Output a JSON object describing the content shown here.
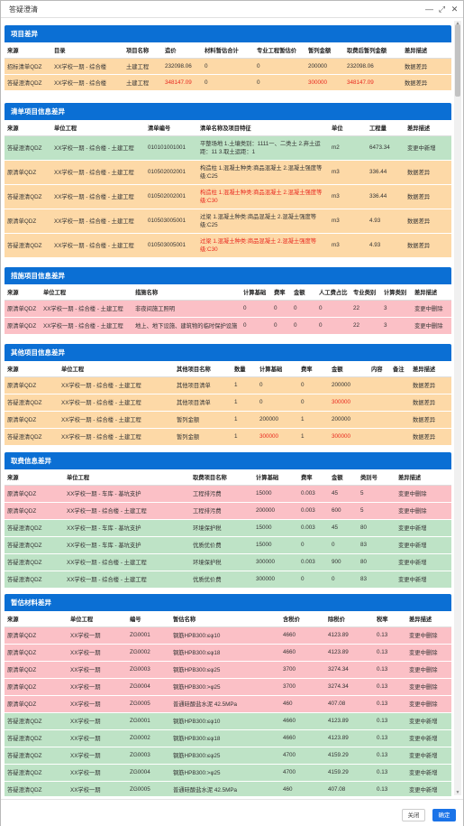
{
  "window": {
    "title": "答疑澄清"
  },
  "footer": {
    "close_label": "关闭",
    "ok_label": "确定"
  },
  "colors": {
    "header_blue": "#0b6fd4",
    "orange_row": "#fdd9a7",
    "green_row": "#bee3c6",
    "red_row": "#fbc0c6",
    "highlight_text": "#e8281f"
  },
  "sections": [
    {
      "id": "project-diff",
      "title": "项目差异",
      "columns": [
        "来源",
        "目录",
        "项目名称",
        "造价",
        "材料暂估合计",
        "专业工程暂估价",
        "暂列金额",
        "取费后暂列金额",
        "差异描述"
      ],
      "widths": [
        52,
        80,
        43,
        44,
        58,
        57,
        43,
        64,
        55
      ],
      "row_height": 18,
      "rows": [
        {
          "status": "orange",
          "cells": [
            "招标清单QDZ",
            "XX学校一期 - 综合楼",
            "土建工程",
            "232098.06",
            "0",
            "0",
            "200000",
            "232098.06",
            "数据差异"
          ],
          "hl": []
        },
        {
          "status": "orange",
          "cells": [
            "答疑澄清QDZ",
            "XX学校一期 - 综合楼",
            "土建工程",
            "348147.09",
            "0",
            "0",
            "300000",
            "348147.09",
            "数据差异"
          ],
          "hl": [
            3,
            6,
            7
          ]
        }
      ]
    },
    {
      "id": "bill-item-diff",
      "title": "清单项目信息差异",
      "columns": [
        "来源",
        "单位工程",
        "清单编号",
        "清单名称及项目特征",
        "单位",
        "工程量",
        "差异描述"
      ],
      "widths": [
        52,
        104,
        58,
        146,
        42,
        42,
        52
      ],
      "row_height": 27,
      "rows": [
        {
          "status": "green",
          "cells": [
            "答疑澄清QDZ",
            "XX学校一期 - 综合楼 - 土建工程",
            "010101001001",
            "平整场地 1.土壤类别：1111一、二类土 2.弃土运距：11 3.取土运距：1",
            "m2",
            "6473.34",
            "变更中新增"
          ],
          "hl": []
        },
        {
          "status": "orange",
          "cells": [
            "原清单QDZ",
            "XX学校一期 - 综合楼 - 土建工程",
            "010502002001",
            "构造柱 1.混凝土种类:商品混凝土 2.混凝土强度等级:C25",
            "m3",
            "336.44",
            "数据差异"
          ],
          "hl": []
        },
        {
          "status": "orange",
          "cells": [
            "答疑澄清QDZ",
            "XX学校一期 - 综合楼 - 土建工程",
            "010502002001",
            "构造柱 1.混凝土种类:商品混凝土 2.混凝土强度等级:C30",
            "m3",
            "336.44",
            "数据差异"
          ],
          "hl": [
            3
          ]
        },
        {
          "status": "orange",
          "cells": [
            "原清单QDZ",
            "XX学校一期 - 综合楼 - 土建工程",
            "010503005001",
            "过梁 1.混凝土种类:商品混凝土 2.混凝土强度等级:C25",
            "m3",
            "4.93",
            "数据差异"
          ],
          "hl": []
        },
        {
          "status": "orange",
          "cells": [
            "答疑澄清QDZ",
            "XX学校一期 - 综合楼 - 土建工程",
            "010503005001",
            "过梁 1.混凝土种类:商品混凝土 2.混凝土强度等级:C30",
            "m3",
            "4.93",
            "数据差异"
          ],
          "hl": [
            3
          ]
        }
      ]
    },
    {
      "id": "measure-diff",
      "title": "措施项目信息差异",
      "columns": [
        "来源",
        "单位工程",
        "措施名称",
        "计算基础",
        "费率",
        "金额",
        "人工费占比",
        "专业类别",
        "计算类别",
        "差异描述"
      ],
      "widths": [
        40,
        102,
        120,
        34,
        22,
        28,
        38,
        34,
        34,
        44
      ],
      "row_height": 19,
      "rows": [
        {
          "status": "red",
          "cells": [
            "原清单QDZ",
            "XX学校一期 - 综合楼 - 土建工程",
            "非夜间施工照明",
            "0",
            "0",
            "0",
            "0",
            "22",
            "3",
            "变更中删除"
          ],
          "hl": []
        },
        {
          "status": "red",
          "cells": [
            "原清单QDZ",
            "XX学校一期 - 综合楼 - 土建工程",
            "地上、地下设施、建筑物的临时保护设施",
            "0",
            "0",
            "0",
            "0",
            "22",
            "3",
            "变更中删除"
          ],
          "hl": []
        }
      ]
    },
    {
      "id": "other-item-diff",
      "title": "其他项目信息差异",
      "columns": [
        "来源",
        "单位工程",
        "其他项目名称",
        "数量",
        "计算基础",
        "费率",
        "金额",
        "内容",
        "备注",
        "差异描述"
      ],
      "widths": [
        60,
        128,
        64,
        28,
        46,
        34,
        44,
        24,
        22,
        46
      ],
      "row_height": 19,
      "rows": [
        {
          "status": "orange",
          "cells": [
            "原清单QDZ",
            "XX学校一期 - 综合楼 - 土建工程",
            "其他项目清单",
            "1",
            "0",
            "0",
            "200000",
            "",
            "",
            "数据差异"
          ],
          "hl": []
        },
        {
          "status": "orange",
          "cells": [
            "答疑澄清QDZ",
            "XX学校一期 - 综合楼 - 土建工程",
            "其他项目清单",
            "1",
            "0",
            "0",
            "300000",
            "",
            "",
            "数据差异"
          ],
          "hl": [
            6
          ]
        },
        {
          "status": "orange",
          "cells": [
            "原清单QDZ",
            "XX学校一期 - 综合楼 - 土建工程",
            "暂列金额",
            "1",
            "200000",
            "1",
            "200000",
            "",
            "",
            "数据差异"
          ],
          "hl": []
        },
        {
          "status": "orange",
          "cells": [
            "答疑澄清QDZ",
            "XX学校一期 - 综合楼 - 土建工程",
            "暂列金额",
            "1",
            "300000",
            "1",
            "300000",
            "",
            "",
            "数据差异"
          ],
          "hl": [
            4,
            6
          ]
        }
      ]
    },
    {
      "id": "fee-diff",
      "title": "取费信息差异",
      "columns": [
        "来源",
        "单位工程",
        "取费项目名称",
        "计算基础",
        "费率",
        "金额",
        "类别号",
        "差异描述"
      ],
      "widths": [
        66,
        140,
        70,
        50,
        34,
        32,
        42,
        62
      ],
      "row_height": 19,
      "rows": [
        {
          "status": "red",
          "cells": [
            "原清单QDZ",
            "XX学校一期 - 车库 - 基坑支护",
            "工程排污费",
            "15000",
            "0.003",
            "45",
            "5",
            "变更中删除"
          ],
          "hl": []
        },
        {
          "status": "red",
          "cells": [
            "原清单QDZ",
            "XX学校一期 - 综合楼 - 土建工程",
            "工程排污费",
            "200000",
            "0.003",
            "600",
            "5",
            "变更中删除"
          ],
          "hl": []
        },
        {
          "status": "green",
          "cells": [
            "答疑澄清QDZ",
            "XX学校一期 - 车库 - 基坑支护",
            "环境保护税",
            "15000",
            "0.003",
            "45",
            "80",
            "变更中新增"
          ],
          "hl": []
        },
        {
          "status": "green",
          "cells": [
            "答疑澄清QDZ",
            "XX学校一期 - 车库 - 基坑支护",
            "优质优价费",
            "15000",
            "0",
            "0",
            "83",
            "变更中新增"
          ],
          "hl": []
        },
        {
          "status": "green",
          "cells": [
            "答疑澄清QDZ",
            "XX学校一期 - 综合楼 - 土建工程",
            "环境保护税",
            "300000",
            "0.003",
            "900",
            "80",
            "变更中新增"
          ],
          "hl": []
        },
        {
          "status": "green",
          "cells": [
            "答疑澄清QDZ",
            "XX学校一期 - 综合楼 - 土建工程",
            "优质优价费",
            "300000",
            "0",
            "0",
            "83",
            "变更中新增"
          ],
          "hl": []
        }
      ]
    },
    {
      "id": "material-diff",
      "title": "暂估材料差异",
      "columns": [
        "来源",
        "单位工程",
        "编号",
        "暂估名称",
        "含税价",
        "除税价",
        "税率",
        "差异描述"
      ],
      "widths": [
        70,
        66,
        48,
        122,
        50,
        54,
        36,
        50
      ],
      "row_height": 19,
      "rows": [
        {
          "status": "red",
          "cells": [
            "原清单QDZ",
            "XX学校一期",
            "ZG0001",
            "钢筋HPB300:≤φ10",
            "4660",
            "4123.89",
            "0.13",
            "变更中删除"
          ],
          "hl": []
        },
        {
          "status": "red",
          "cells": [
            "原清单QDZ",
            "XX学校一期",
            "ZG0002",
            "钢筋HPB300:≤φ18",
            "4660",
            "4123.89",
            "0.13",
            "变更中删除"
          ],
          "hl": []
        },
        {
          "status": "red",
          "cells": [
            "原清单QDZ",
            "XX学校一期",
            "ZG0003",
            "钢筋HPB300:≤φ25",
            "3700",
            "3274.34",
            "0.13",
            "变更中删除"
          ],
          "hl": []
        },
        {
          "status": "red",
          "cells": [
            "原清单QDZ",
            "XX学校一期",
            "ZG0004",
            "钢筋HPB300:>φ25",
            "3700",
            "3274.34",
            "0.13",
            "变更中删除"
          ],
          "hl": []
        },
        {
          "status": "red",
          "cells": [
            "原清单QDZ",
            "XX学校一期",
            "ZG0005",
            "普通硅酸盐水泥 42.5MPa",
            "460",
            "407.08",
            "0.13",
            "变更中删除"
          ],
          "hl": []
        },
        {
          "status": "green",
          "cells": [
            "答疑澄清QDZ",
            "XX学校一期",
            "ZG0001",
            "钢筋HPB300:≤φ10",
            "4660",
            "4123.89",
            "0.13",
            "变更中新增"
          ],
          "hl": []
        },
        {
          "status": "green",
          "cells": [
            "答疑澄清QDZ",
            "XX学校一期",
            "ZG0002",
            "钢筋HPB300:≤φ18",
            "4660",
            "4123.89",
            "0.13",
            "变更中新增"
          ],
          "hl": []
        },
        {
          "status": "green",
          "cells": [
            "答疑澄清QDZ",
            "XX学校一期",
            "ZG0003",
            "钢筋HPB300:≤φ25",
            "4700",
            "4159.29",
            "0.13",
            "变更中新增"
          ],
          "hl": []
        },
        {
          "status": "green",
          "cells": [
            "答疑澄清QDZ",
            "XX学校一期",
            "ZG0004",
            "钢筋HPB300:>φ25",
            "4700",
            "4159.29",
            "0.13",
            "变更中新增"
          ],
          "hl": []
        },
        {
          "status": "green",
          "cells": [
            "答疑澄清QDZ",
            "XX学校一期",
            "ZG0005",
            "普通硅酸盐水泥 42.5MPa",
            "460",
            "407.08",
            "0.13",
            "变更中新增"
          ],
          "hl": []
        }
      ]
    }
  ]
}
